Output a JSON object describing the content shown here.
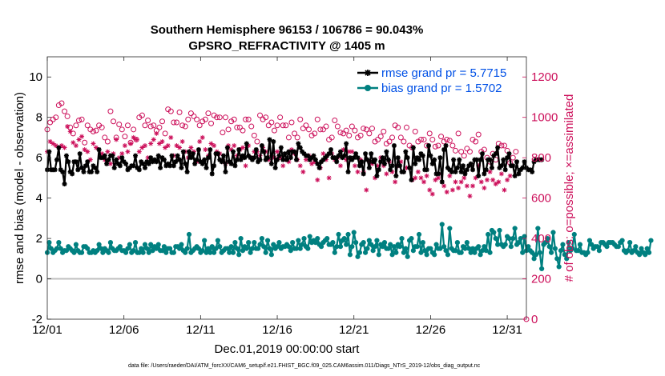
{
  "chart_data": {
    "type": "line",
    "title": "Southern Hemisphere 96153 / 106786 = 90.043%",
    "subtitle": "GPSRO_REFRACTIVITY @ 1405 m",
    "xlabel": "Dec.01,2019 00:00:00 start",
    "ylabel": "rmse and bias (model - observation)",
    "y2label": "# of obs: o=possible; ×=assimilated",
    "footnote": "data file: /Users/raeder/DAI/ATM_forcXX/CAM6_setup/f.e21.FHIST_BGC.f09_025.CAM6assim.011/Diags_NTrS_2019-12/obs_diag_output.nc",
    "xlim": [
      1,
      32.25
    ],
    "ylim": [
      -2,
      11
    ],
    "y2lim": [
      0,
      1300
    ],
    "x_ticks": [
      1,
      6,
      11,
      16,
      21,
      26,
      31
    ],
    "x_tick_labels": [
      "12/01",
      "12/06",
      "12/11",
      "12/16",
      "12/21",
      "12/26",
      "12/31"
    ],
    "y_ticks": [
      -2,
      0,
      2,
      4,
      6,
      8,
      10
    ],
    "y2_ticks": [
      0,
      200,
      400,
      600,
      800,
      1000,
      1200
    ],
    "legend_position": "top-right",
    "colors": {
      "rmse": "#000000",
      "bias": "#008080",
      "counts": "#cc0f5a",
      "legend_text": "#0050e6",
      "zero_line": "#bfbfbf"
    },
    "series": [
      {
        "name": "rmse grand pr = 5.7715",
        "color": "#000000",
        "marker": "*",
        "values": [
          5.4,
          6.3,
          5.4,
          5.4,
          5.4,
          5.9,
          6.5,
          5.4,
          5.3,
          4.7,
          6.1,
          5.8,
          5.3,
          5.2,
          5.8,
          5.8,
          5.4,
          6.2,
          5.5,
          5.3,
          5.6,
          5.8,
          5.3,
          5.3,
          5.6,
          5.5,
          5.3,
          6.4,
          6.0,
          6.0,
          6.1,
          5.7,
          5.9,
          6.1,
          6.1,
          5.5,
          5.9,
          5.7,
          5.6,
          6.0,
          5.8,
          5.7,
          5.4,
          5.5,
          5.6,
          5.6,
          6.1,
          5.5,
          5.4,
          5.8,
          5.7,
          5.5,
          5.8,
          5.7,
          6.0,
          5.8,
          5.9,
          5.8,
          6.1,
          5.5,
          6.0,
          5.9,
          5.6,
          5.7,
          5.6,
          6.1,
          5.6,
          5.8,
          6.1,
          5.9,
          5.5,
          6.3,
          5.7,
          5.3,
          6.3,
          6.0,
          6.2,
          5.7,
          5.9,
          6.4,
          5.8,
          5.7,
          5.9,
          5.5,
          6.0,
          6.4,
          5.2,
          5.6,
          6.2,
          6.2,
          5.9,
          5.8,
          6.1,
          5.3,
          6.5,
          5.8,
          5.7,
          6.3,
          5.6,
          5.9,
          6.4,
          5.9,
          6.1,
          6.0,
          6.7,
          6.1,
          6.0,
          5.9,
          6.0,
          6.4,
          5.8,
          5.9,
          6.6,
          6.3,
          5.9,
          6.0,
          6.9,
          5.7,
          6.8,
          5.5,
          5.9,
          6.1,
          6.5,
          5.9,
          6.2,
          5.9,
          6.3,
          6.0,
          6.3,
          6.3,
          5.9,
          6.7,
          6.5,
          6.3,
          6.2,
          6.1,
          6.1,
          5.9,
          6.0,
          6.1,
          5.9,
          5.7,
          5.5,
          5.8,
          5.9,
          6.0,
          6.1,
          6.2,
          6.4,
          6.0,
          6.0,
          5.8,
          6.1,
          6.3,
          6.0,
          6.1,
          6.7,
          5.3,
          6.0,
          5.9,
          6.0,
          6.2,
          6.0,
          5.6,
          5.8,
          5.2,
          6.2,
          5.9,
          5.5,
          6.2,
          5.8,
          5.9,
          5.1,
          5.4,
          5.8,
          6.0,
          5.7,
          6.3,
          5.9,
          5.4,
          5.6,
          6.6,
          5.1,
          6.0,
          5.6,
          5.3,
          5.3,
          6.3,
          6.0,
          5.5,
          4.9,
          6.5,
          5.7,
          6.0,
          5.9,
          6.2,
          6.1,
          5.4,
          5.4,
          6.6,
          6.1,
          5.7,
          5.9,
          5.2,
          5.2,
          6.0,
          4.8,
          6.4,
          6.6,
          5.5,
          5.4,
          5.3,
          5.9,
          5.3,
          5.5,
          5.9,
          5.3,
          5.6,
          5.2,
          5.4,
          5.6,
          5.7,
          5.4,
          5.9,
          5.9,
          5.1,
          5.9,
          6.2,
          5.2,
          5.4,
          5.9,
          5.9,
          5.5,
          6.1,
          6.2,
          6.5,
          5.5,
          5.6,
          5.9,
          5.4,
          6.0,
          6.2,
          5.6,
          5.6,
          5.1,
          5.8,
          5.2,
          5.4,
          5.5,
          5.8,
          5.5,
          5.4,
          5.4,
          5.3,
          5.8,
          5.9,
          5.9,
          5.9,
          5.9
        ],
        "x_start": 1.0,
        "x_step": 0.125
      },
      {
        "name": "bias grand pr = 1.5702",
        "color": "#008080",
        "marker": "o",
        "values": [
          1.3,
          1.8,
          1.5,
          1.3,
          1.4,
          1.5,
          1.8,
          1.5,
          1.3,
          1.4,
          1.4,
          1.6,
          1.5,
          1.4,
          1.3,
          1.7,
          1.4,
          1.3,
          1.3,
          1.6,
          1.6,
          1.5,
          1.3,
          1.3,
          1.4,
          1.3,
          1.4,
          1.7,
          1.5,
          1.3,
          1.5,
          1.4,
          1.3,
          1.8,
          1.5,
          1.4,
          1.4,
          1.5,
          1.6,
          1.4,
          1.4,
          1.3,
          1.5,
          1.7,
          1.3,
          1.4,
          1.8,
          1.3,
          1.3,
          1.5,
          1.3,
          1.7,
          1.5,
          1.3,
          1.7,
          1.4,
          1.6,
          1.5,
          1.7,
          1.4,
          1.4,
          1.6,
          1.3,
          1.5,
          1.5,
          1.3,
          1.3,
          1.6,
          1.6,
          1.5,
          1.7,
          1.4,
          1.3,
          1.5,
          2.2,
          1.3,
          1.4,
          1.5,
          1.6,
          1.5,
          1.3,
          1.4,
          1.9,
          1.3,
          1.5,
          1.3,
          1.6,
          1.3,
          1.5,
          1.9,
          1.6,
          1.3,
          1.4,
          1.5,
          1.5,
          1.3,
          1.6,
          1.3,
          1.8,
          1.5,
          1.2,
          2.0,
          1.4,
          1.6,
          1.5,
          1.8,
          1.3,
          1.5,
          1.8,
          1.5,
          1.5,
          1.7,
          2.0,
          1.6,
          1.3,
          1.9,
          1.5,
          1.2,
          1.7,
          1.5,
          1.6,
          1.8,
          1.5,
          1.6,
          1.6,
          1.7,
          1.6,
          1.4,
          1.8,
          1.5,
          1.5,
          1.9,
          1.5,
          1.7,
          2.0,
          1.6,
          1.5,
          2.1,
          1.8,
          1.9,
          1.8,
          2.0,
          1.7,
          1.6,
          1.8,
          1.9,
          2.0,
          1.7,
          1.7,
          1.8,
          1.3,
          1.6,
          2.2,
          1.6,
          1.9,
          2.0,
          1.7,
          2.2,
          1.2,
          1.6,
          2.3,
          1.8,
          1.1,
          1.3,
          1.7,
          1.8,
          1.3,
          1.5,
          1.9,
          1.7,
          1.4,
          1.6,
          1.9,
          1.2,
          1.7,
          1.6,
          1.8,
          1.5,
          1.5,
          1.7,
          1.2,
          1.6,
          1.3,
          1.7,
          1.6,
          2.0,
          1.3,
          1.5,
          1.1,
          1.9,
          2.0,
          1.4,
          1.6,
          1.6,
          2.2,
          1.3,
          1.8,
          1.4,
          1.2,
          1.5,
          1.5,
          1.3,
          1.2,
          1.7,
          1.5,
          1.5,
          2.7,
          1.6,
          1.4,
          1.2,
          2.5,
          1.5,
          1.4,
          1.4,
          1.8,
          1.3,
          1.3,
          1.6,
          1.5,
          1.8,
          1.5,
          1.3,
          1.5,
          1.3,
          1.5,
          1.6,
          1.2,
          1.4,
          1.6,
          1.4,
          2.2,
          1.3,
          2.4,
          2.3,
          2.0,
          1.7,
          2.4,
          1.7,
          1.6,
          1.7,
          2.1,
          2.0,
          1.6,
          2.0,
          2.5,
          1.7,
          1.8,
          2.0,
          1.3,
          2.1,
          1.4,
          1.6,
          1.4,
          1.3,
          1.0,
          1.2,
          2.5,
          1.3,
          0.5,
          1.7,
          1.8,
          2.0,
          1.6,
          1.3,
          2.3,
          1.5,
          1.0,
          0.6,
          1.4,
          1.7,
          1.2,
          1.0,
          1.8,
          1.4,
          1.5,
          2.2,
          1.4,
          1.4,
          1.7,
          1.3,
          1.3,
          1.2,
          1.3,
          1.9,
          1.7,
          1.5,
          1.6,
          1.6,
          1.4,
          1.8,
          1.8,
          1.7,
          1.6,
          1.8,
          1.8,
          1.8,
          1.7,
          1.6,
          1.6,
          1.8,
          1.9,
          1.4,
          1.3,
          1.4,
          1.8,
          1.3,
          1.4,
          1.6,
          1.3,
          1.2,
          1.5,
          1.3,
          1.2,
          1.5,
          1.3,
          1.9
        ],
        "x_start": 1.0,
        "x_step": 0.125
      },
      {
        "name": "possible",
        "axis": "right",
        "marker": "o",
        "color": "#cc0f5a",
        "values": [
          940,
          975,
          990,
          1000,
          1060,
          1070,
          1030,
          1005,
          950,
          920,
          960,
          985,
          990,
          875,
          960,
          940,
          930,
          935,
          960,
          950,
          900,
          880,
          1030,
          980,
          900,
          965,
          940,
          905,
          960,
          875,
          940,
          890,
          1000,
          1010,
          960,
          985,
          955,
          960,
          935,
          950,
          980,
          920,
          1040,
          1030,
          975,
          975,
          1025,
          960,
          955,
          990,
          1020,
          1005,
          990,
          960,
          980,
          990,
          1020,
          970,
          1010,
          1000,
          1000,
          925,
          1000,
          940,
          980,
          990,
          950,
          950,
          935,
          990,
          990,
          955,
          910,
          880,
          1010,
          990,
          1000,
          960,
          975,
          935,
          960,
          1000,
          960,
          960,
          900,
          975,
          920,
          900,
          990,
          945,
          960,
          940,
          910,
          920,
          990,
          940,
          940,
          955,
          890,
          900,
          985,
          955,
          925,
          920,
          935,
          910,
          955,
          935,
          900,
          910,
          945,
          940,
          920,
          945,
          880,
          890,
          905,
          930,
          870,
          880,
          900,
          960,
          950,
          900,
          880,
          950,
          860,
          850,
          930,
          880,
          890,
          890,
          860,
          920,
          890,
          855,
          860,
          905,
          880,
          890,
          885,
          860,
          835,
          920,
          830,
          810,
          845,
          830,
          890,
          880,
          915,
          830,
          840,
          800,
          780,
          820,
          790,
          870,
          860,
          860,
          835,
          775,
          800,
          830
        ],
        "x_start": 1.0,
        "x_step": 0.1875
      },
      {
        "name": "assimilated",
        "axis": "right",
        "marker": "x",
        "color": "#cc0f5a",
        "values": [
          830,
          880,
          870,
          860,
          850,
          860,
          850,
          955,
          930,
          875,
          860,
          890,
          905,
          840,
          830,
          790,
          870,
          850,
          840,
          820,
          790,
          830,
          770,
          820,
          890,
          800,
          820,
          860,
          830,
          870,
          900,
          890,
          830,
          850,
          860,
          800,
          870,
          890,
          920,
          870,
          880,
          850,
          860,
          900,
          810,
          860,
          850,
          880,
          830,
          800,
          850,
          830,
          780,
          880,
          900,
          840,
          810,
          870,
          860,
          830,
          820,
          790,
          770,
          860,
          840,
          860,
          810,
          840,
          850,
          760,
          860,
          800,
          830,
          830,
          810,
          850,
          830,
          790,
          810,
          800,
          830,
          800,
          760,
          790,
          780,
          840,
          820,
          790,
          760,
          730,
          790,
          810,
          770,
          780,
          690,
          750,
          820,
          790,
          700,
          820,
          790,
          800,
          760,
          840,
          790,
          830,
          830,
          760,
          730,
          790,
          730,
          640,
          780,
          770,
          700,
          760,
          800,
          760,
          720,
          780,
          730,
          680,
          760,
          780,
          730,
          750,
          750,
          690,
          700,
          730,
          700,
          680,
          710,
          640,
          620,
          690,
          700,
          720,
          660,
          630,
          710,
          640,
          680,
          650,
          680,
          700,
          660,
          610,
          660,
          700,
          760,
          680,
          650,
          690,
          730,
          690,
          670,
          680,
          720,
          640,
          690,
          710
        ],
        "x_start": 1.0,
        "x_step": 0.1875
      }
    ]
  }
}
